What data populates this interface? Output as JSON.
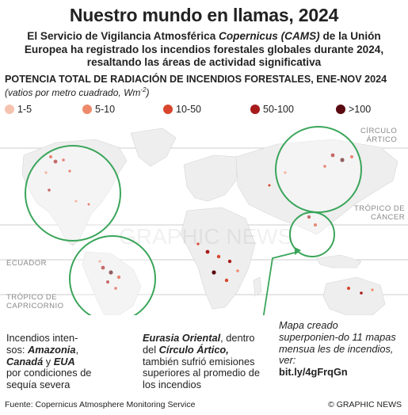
{
  "title": "Nuestro mundo en llamas, 2024",
  "subtitle_part1": "El Servicio de Vigilancia Atmosférica ",
  "subtitle_italic": "Copernicus (CAMS)",
  "subtitle_part2": " de la Unión Europea ha registrado los incendios forestales globales durante 2024, resaltando las áreas de actividad significativa",
  "section_title": "POTENCIA TOTAL DE  RADIACIÓN DE INCENDIOS FORESTALES, ENE-NOV 2024",
  "units": "(vatios por metro cuadrado, Wm",
  "units_exp": "-2",
  "units_end": ")",
  "legend": [
    {
      "label": "1-5",
      "color": "#f6c3b0"
    },
    {
      "label": "5-10",
      "color": "#ee8a6b"
    },
    {
      "label": "10-50",
      "color": "#d9452d"
    },
    {
      "label": "50-100",
      "color": "#a81b1b"
    },
    {
      "label": ">100",
      "color": "#5a0a10"
    }
  ],
  "map_labels": {
    "arctic": "CÍRCULO\nÁRTICO",
    "cancer": "TRÓPICO DE\nCÁNCER",
    "equator": "ECUADOR",
    "capricorn": "TRÓPICO DE\nCAPRICORNIO"
  },
  "watermark": "GRAPHIC NEWS",
  "captions": {
    "left_1": "Incendios inten-\nsos: ",
    "left_b1": "Amazonia",
    "left_2": ",",
    "left_b2": "Canadá",
    "left_3": " y ",
    "left_b3": "EUA",
    "left_4": "por condiciones de sequía severa",
    "mid_b1": "Eurasia Oriental",
    "mid_1": ", dentro del ",
    "mid_b2": "Círculo Ártico,",
    "mid_2": "también sufrió emisiones superiores al promedio de los incendios",
    "right_1": "Mapa creado superponien-do 11 mapas mensua les de incendios, ver:",
    "right_link": "bit.ly/4gFrqGn"
  },
  "source": "Fuente: Copernicus Atmosphere Monitoring Service",
  "credit": "© GRAPHIC NEWS",
  "colors": {
    "highlight": "#3aa55a",
    "land": "#eeeeee",
    "fire": "#c8331f"
  }
}
